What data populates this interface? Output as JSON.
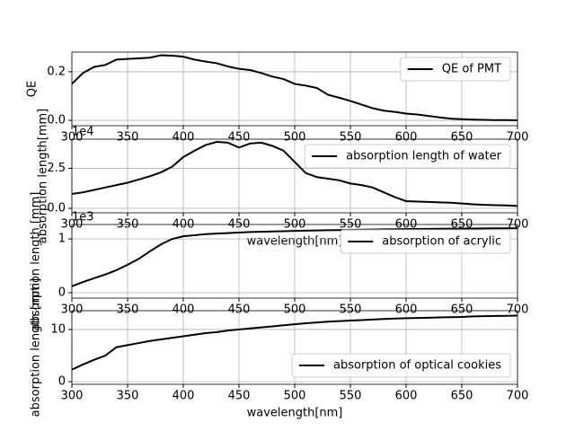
{
  "chart_data": [
    {
      "type": "line",
      "ylabel": "QE",
      "legend": "upper right",
      "grid": true,
      "x": [
        300,
        310,
        320,
        330,
        340,
        350,
        360,
        370,
        380,
        390,
        400,
        410,
        420,
        430,
        440,
        450,
        460,
        470,
        480,
        490,
        500,
        510,
        520,
        530,
        540,
        550,
        560,
        570,
        580,
        590,
        600,
        610,
        620,
        630,
        640,
        650,
        660,
        670,
        680,
        690,
        700
      ],
      "series": [
        {
          "name": "QE  of  PMT",
          "color": "#000000",
          "values": [
            0.15,
            0.195,
            0.22,
            0.228,
            0.25,
            0.253,
            0.255,
            0.258,
            0.268,
            0.266,
            0.262,
            0.25,
            0.242,
            0.235,
            0.222,
            0.212,
            0.207,
            0.195,
            0.18,
            0.17,
            0.15,
            0.143,
            0.133,
            0.105,
            0.093,
            0.08,
            0.065,
            0.05,
            0.04,
            0.035,
            0.028,
            0.024,
            0.018,
            0.012,
            0.007,
            0.005,
            0.003,
            0.002,
            0.001,
            0.001,
            0
          ]
        }
      ],
      "xlim": [
        300,
        700
      ],
      "xticks": [
        300,
        350,
        400,
        450,
        500,
        550,
        600,
        650,
        700
      ],
      "ylim": [
        -0.022,
        0.281
      ],
      "yticks": [
        {
          "value": 0,
          "label": "0.0"
        },
        {
          "value": 0.2,
          "label": "0.2"
        }
      ]
    },
    {
      "type": "line",
      "ylabel": "absorption length[mm]",
      "xlabel": "wavelength[nm]",
      "offset_text": "1e4",
      "legend": "upper right",
      "grid": true,
      "x": [
        300,
        310,
        320,
        330,
        340,
        350,
        360,
        370,
        380,
        390,
        400,
        410,
        420,
        430,
        440,
        450,
        460,
        470,
        480,
        490,
        500,
        510,
        520,
        530,
        540,
        550,
        560,
        570,
        580,
        590,
        600,
        610,
        620,
        630,
        640,
        650,
        660,
        670,
        680,
        690,
        700
      ],
      "series": [
        {
          "name": "absorption length of  water",
          "color": "#000000",
          "values": [
            0.9,
            1.0,
            1.15,
            1.3,
            1.45,
            1.6,
            1.8,
            2.0,
            2.25,
            2.6,
            3.2,
            3.6,
            3.95,
            4.15,
            4.1,
            3.8,
            4.05,
            4.1,
            3.9,
            3.6,
            2.9,
            2.2,
            1.95,
            1.85,
            1.75,
            1.55,
            1.45,
            1.3,
            1.0,
            0.7,
            0.45,
            0.42,
            0.4,
            0.37,
            0.35,
            0.3,
            0.25,
            0.22,
            0.2,
            0.18,
            0.15
          ]
        }
      ],
      "xlim": [
        300,
        700
      ],
      "xticks": [
        300,
        350,
        400,
        450,
        500,
        550,
        600,
        650,
        700
      ],
      "ylim": [
        -0.28,
        4.32
      ],
      "yticks": [
        {
          "value": 0,
          "label": "0.0"
        },
        2.5
      ]
    },
    {
      "type": "line",
      "ylabel": "absorption length [mm]",
      "offset_text": "1e3",
      "legend": "upper right",
      "grid": true,
      "x": [
        300,
        310,
        320,
        330,
        340,
        350,
        360,
        370,
        380,
        390,
        400,
        410,
        420,
        430,
        440,
        450,
        460,
        470,
        480,
        490,
        500,
        510,
        520,
        530,
        540,
        550,
        560,
        570,
        580,
        590,
        600,
        610,
        620,
        630,
        640,
        650,
        660,
        670,
        680,
        690,
        700
      ],
      "series": [
        {
          "name": "absorption  of  acrylic",
          "color": "#000000",
          "values": [
            0.12,
            0.2,
            0.27,
            0.34,
            0.42,
            0.52,
            0.63,
            0.77,
            0.9,
            1.0,
            1.05,
            1.07,
            1.09,
            1.1,
            1.11,
            1.12,
            1.13,
            1.135,
            1.14,
            1.145,
            1.15,
            1.155,
            1.16,
            1.163,
            1.166,
            1.17,
            1.173,
            1.176,
            1.18,
            1.182,
            1.184,
            1.186,
            1.188,
            1.19,
            1.192,
            1.194,
            1.195,
            1.196,
            1.198,
            1.199,
            1.2
          ]
        }
      ],
      "xlim": [
        300,
        700
      ],
      "xticks": [
        300,
        350,
        400,
        450,
        500,
        550,
        600,
        650,
        700
      ],
      "ylim": [
        -0.1,
        1.27
      ],
      "yticks": [
        0,
        1
      ]
    },
    {
      "type": "line",
      "ylabel": "absorption length [mm]",
      "xlabel": "wavelength[nm]",
      "legend": "lower right",
      "grid": true,
      "x": [
        300,
        310,
        320,
        330,
        340,
        350,
        360,
        370,
        380,
        390,
        400,
        410,
        420,
        430,
        440,
        450,
        460,
        470,
        480,
        490,
        500,
        510,
        520,
        530,
        540,
        550,
        560,
        570,
        580,
        590,
        600,
        610,
        620,
        630,
        640,
        650,
        660,
        670,
        680,
        690,
        700
      ],
      "series": [
        {
          "name": "absorption  of  optical cookies",
          "color": "#000000",
          "values": [
            2.3,
            3.3,
            4.2,
            5.0,
            6.6,
            7.0,
            7.4,
            7.8,
            8.1,
            8.4,
            8.7,
            9.0,
            9.3,
            9.5,
            9.8,
            10.0,
            10.2,
            10.4,
            10.6,
            10.8,
            11.0,
            11.2,
            11.35,
            11.5,
            11.6,
            11.7,
            11.8,
            11.9,
            12.0,
            12.1,
            12.15,
            12.2,
            12.25,
            12.3,
            12.35,
            12.4,
            12.5,
            12.55,
            12.6,
            12.62,
            12.65
          ]
        }
      ],
      "xlim": [
        300,
        700
      ],
      "xticks": [
        300,
        350,
        400,
        450,
        500,
        550,
        600,
        650,
        700
      ],
      "ylim": [
        -0.5,
        13.6
      ],
      "yticks": [
        0,
        10
      ]
    }
  ]
}
